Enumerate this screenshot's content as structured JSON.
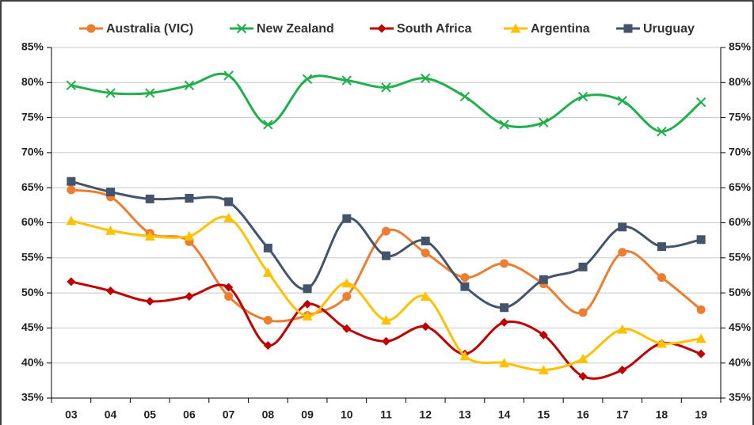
{
  "chart_data": {
    "type": "line",
    "smooth": true,
    "grid": true,
    "legend": "top",
    "categories": [
      "03",
      "04",
      "05",
      "06",
      "07",
      "08",
      "09",
      "10",
      "11",
      "12",
      "13",
      "14",
      "15",
      "16",
      "17",
      "18",
      "19"
    ],
    "ylim": [
      35,
      85
    ],
    "yticks": [
      {
        "value": 35,
        "label": "35%"
      },
      {
        "value": 40,
        "label": "40%"
      },
      {
        "value": 45,
        "label": "45%"
      },
      {
        "value": 50,
        "label": "50%"
      },
      {
        "value": 55,
        "label": "55%"
      },
      {
        "value": 60,
        "label": "60%"
      },
      {
        "value": 65,
        "label": "65%"
      },
      {
        "value": 70,
        "label": "70%"
      },
      {
        "value": 75,
        "label": "75%"
      },
      {
        "value": 80,
        "label": "80%"
      },
      {
        "value": 85,
        "label": "85%"
      }
    ],
    "y2lim": [
      35,
      85
    ],
    "y2ticks": [
      {
        "value": 35,
        "label": "35%"
      },
      {
        "value": 40,
        "label": "40%"
      },
      {
        "value": 45,
        "label": "45%"
      },
      {
        "value": 50,
        "label": "50%"
      },
      {
        "value": 55,
        "label": "55%"
      },
      {
        "value": 60,
        "label": "60%"
      },
      {
        "value": 65,
        "label": "65%"
      },
      {
        "value": 70,
        "label": "70%"
      },
      {
        "value": 75,
        "label": "75%"
      },
      {
        "value": 80,
        "label": "80%"
      },
      {
        "value": 85,
        "label": "85%"
      }
    ],
    "series": [
      {
        "name": "Australia (VIC)",
        "color": "#ed7d31",
        "marker": "circle",
        "values": [
          64.7,
          63.7,
          58.5,
          57.3,
          49.5,
          46.1,
          46.8,
          49.5,
          58.8,
          55.7,
          52.2,
          54.2,
          51.3,
          47.2,
          55.8,
          52.2,
          47.6
        ]
      },
      {
        "name": "New Zealand",
        "color": "#1fb04b",
        "marker": "x",
        "values": [
          79.6,
          78.5,
          78.5,
          79.6,
          81.0,
          74.0,
          80.5,
          80.3,
          79.3,
          80.6,
          78.0,
          74.0,
          74.3,
          78.0,
          77.4,
          73.0,
          77.2
        ]
      },
      {
        "name": "South Africa",
        "color": "#c00000",
        "marker": "diamond",
        "values": [
          51.6,
          50.3,
          48.8,
          49.5,
          50.8,
          42.5,
          48.4,
          44.9,
          43.1,
          45.2,
          41.3,
          45.8,
          44.0,
          38.1,
          39.0,
          42.8,
          41.3
        ]
      },
      {
        "name": "Argentina",
        "color": "#ffc000",
        "marker": "triangle",
        "values": [
          60.3,
          58.9,
          58.1,
          58.1,
          60.7,
          52.9,
          46.7,
          51.4,
          46.1,
          49.5,
          41.0,
          40.0,
          39.0,
          40.6,
          44.8,
          42.8,
          43.5
        ]
      },
      {
        "name": "Uruguay",
        "color": "#44546a",
        "marker": "square",
        "values": [
          65.9,
          64.4,
          63.4,
          63.5,
          63.0,
          56.4,
          50.6,
          60.6,
          55.3,
          57.4,
          50.9,
          47.9,
          51.9,
          53.7,
          59.4,
          56.6,
          57.6
        ]
      }
    ]
  }
}
